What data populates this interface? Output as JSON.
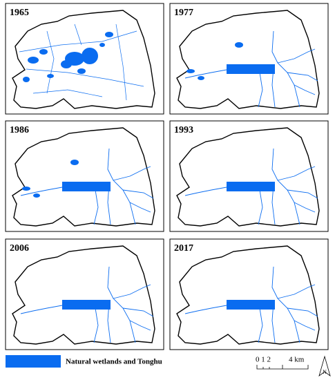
{
  "panels": [
    "1965",
    "1977",
    "1986",
    "1993",
    "2006",
    "2017"
  ],
  "legend": {
    "label": "Natural  wetlands and Tonghu"
  },
  "scale_bar": {
    "left_label": "0 1 2",
    "right_label": "4 km"
  },
  "north_arrow": {
    "label": "N"
  }
}
